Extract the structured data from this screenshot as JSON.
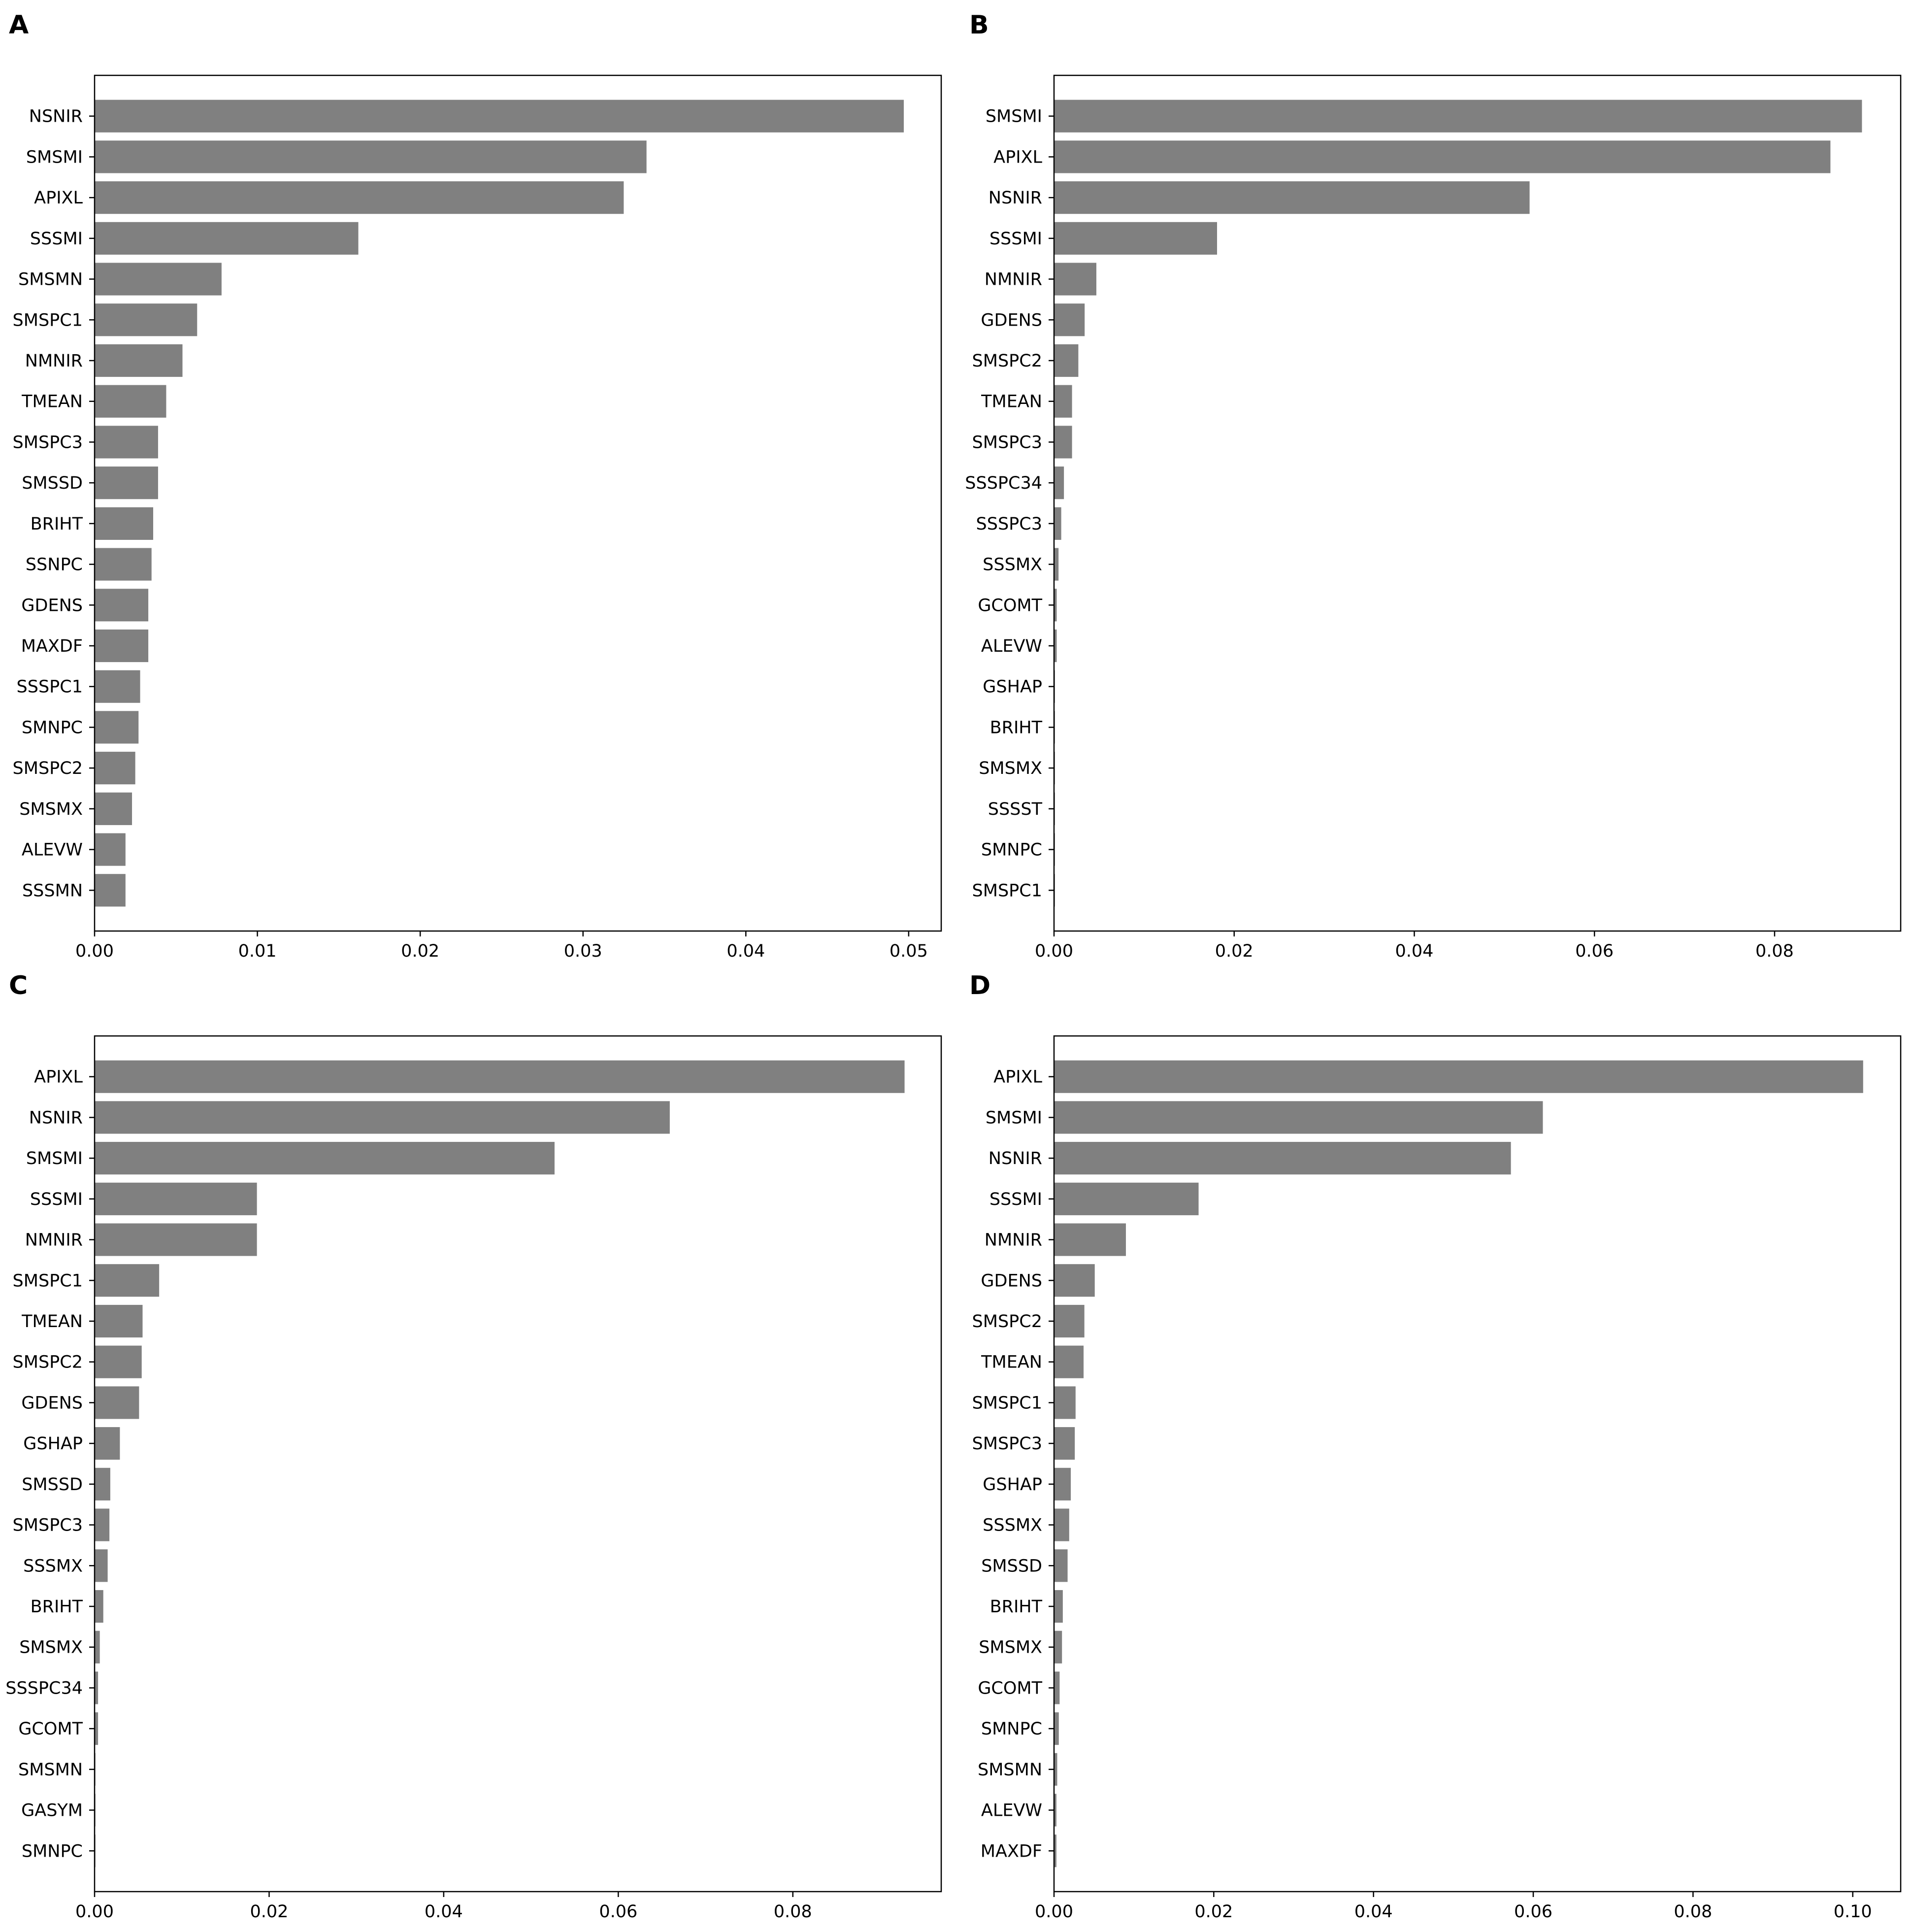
{
  "colors": {
    "bar": "#808080",
    "axes": "#000000",
    "background": "#ffffff"
  },
  "chart_data": [
    {
      "type": "bar",
      "orientation": "horizontal",
      "panel": "A",
      "title": "",
      "xlabel": "",
      "ylabel": "",
      "xlim": [
        0,
        0.052
      ],
      "xticks": [
        0.0,
        0.01,
        0.02,
        0.03,
        0.04,
        0.05
      ],
      "xtick_labels": [
        "0.00",
        "0.01",
        "0.02",
        "0.03",
        "0.04",
        "0.05"
      ],
      "grid": false,
      "categories": [
        "NSNIR",
        "SMSMI",
        "APIXL",
        "SSSMI",
        "SMSMN",
        "SMSPC1",
        "NMNIR",
        "TMEAN",
        "SMSPC3",
        "SMSSD",
        "BRIHT",
        "SSNPC",
        "GDENS",
        "MAXDF",
        "SSSPC1",
        "SMNPC",
        "SMSPC2",
        "SMSMX",
        "ALEVW",
        "SSSMN"
      ],
      "values": [
        0.0497,
        0.0339,
        0.0325,
        0.0162,
        0.0078,
        0.0063,
        0.0054,
        0.0044,
        0.0039,
        0.0039,
        0.0036,
        0.0035,
        0.0033,
        0.0033,
        0.0028,
        0.0027,
        0.0025,
        0.0023,
        0.0019,
        0.0019
      ]
    },
    {
      "type": "bar",
      "orientation": "horizontal",
      "panel": "B",
      "title": "",
      "xlabel": "",
      "ylabel": "",
      "xlim": [
        0,
        0.094
      ],
      "xticks": [
        0.0,
        0.02,
        0.04,
        0.06,
        0.08
      ],
      "xtick_labels": [
        "0.00",
        "0.02",
        "0.04",
        "0.06",
        "0.08"
      ],
      "grid": false,
      "categories": [
        "SMSMI",
        "APIXL",
        "NSNIR",
        "SSSMI",
        "NMNIR",
        "GDENS",
        "SMSPC2",
        "TMEAN",
        "SMSPC3",
        "SSSPC34",
        "SSSPC3",
        "SSSMX",
        "GCOMT",
        "ALEVW",
        "GSHAP",
        "BRIHT",
        "SMSMX",
        "SSSST",
        "SMNPC",
        "SMSPC1"
      ],
      "values": [
        0.0897,
        0.0862,
        0.0528,
        0.0181,
        0.0047,
        0.0034,
        0.0027,
        0.002,
        0.002,
        0.0011,
        0.0008,
        0.0005,
        0.0003,
        0.0003,
        0.0001,
        0.0001,
        0.0001,
        0.0001,
        0.0001,
        0.0001
      ]
    },
    {
      "type": "bar",
      "orientation": "horizontal",
      "panel": "C",
      "title": "",
      "xlabel": "",
      "ylabel": "",
      "xlim": [
        0,
        0.097
      ],
      "xticks": [
        0.0,
        0.02,
        0.04,
        0.06,
        0.08
      ],
      "xtick_labels": [
        "0.00",
        "0.02",
        "0.04",
        "0.06",
        "0.08"
      ],
      "grid": false,
      "categories": [
        "APIXL",
        "NSNIR",
        "SMSMI",
        "SSSMI",
        "NMNIR",
        "SMSPC1",
        "TMEAN",
        "SMSPC2",
        "GDENS",
        "GSHAP",
        "SMSSD",
        "SMSPC3",
        "SSSMX",
        "BRIHT",
        "SMSMX",
        "SSSPC34",
        "GCOMT",
        "SMSMN",
        "GASYM",
        "SMNPC"
      ],
      "values": [
        0.0928,
        0.0659,
        0.0527,
        0.0186,
        0.0186,
        0.0074,
        0.0055,
        0.0054,
        0.0051,
        0.0029,
        0.0018,
        0.0017,
        0.0015,
        0.001,
        0.0006,
        0.0004,
        0.0004,
        0.0001,
        0.0001,
        0.0001
      ]
    },
    {
      "type": "bar",
      "orientation": "horizontal",
      "panel": "D",
      "title": "",
      "xlabel": "",
      "ylabel": "",
      "xlim": [
        0,
        0.106
      ],
      "xticks": [
        0.0,
        0.02,
        0.04,
        0.06,
        0.08,
        0.1
      ],
      "xtick_labels": [
        "0.00",
        "0.02",
        "0.04",
        "0.06",
        "0.08",
        "0.10"
      ],
      "grid": false,
      "categories": [
        "APIXL",
        "SMSMI",
        "NSNIR",
        "SSSMI",
        "NMNIR",
        "GDENS",
        "SMSPC2",
        "TMEAN",
        "SMSPC1",
        "SMSPC3",
        "GSHAP",
        "SSSMX",
        "SMSSD",
        "BRIHT",
        "SMSMX",
        "GCOMT",
        "SMNPC",
        "SMSMN",
        "ALEVW",
        "MAXDF"
      ],
      "values": [
        0.1013,
        0.0612,
        0.0572,
        0.0181,
        0.009,
        0.0051,
        0.0038,
        0.0037,
        0.0027,
        0.0026,
        0.0021,
        0.0019,
        0.0017,
        0.0011,
        0.001,
        0.0007,
        0.0006,
        0.0004,
        0.0003,
        0.0003
      ]
    }
  ]
}
